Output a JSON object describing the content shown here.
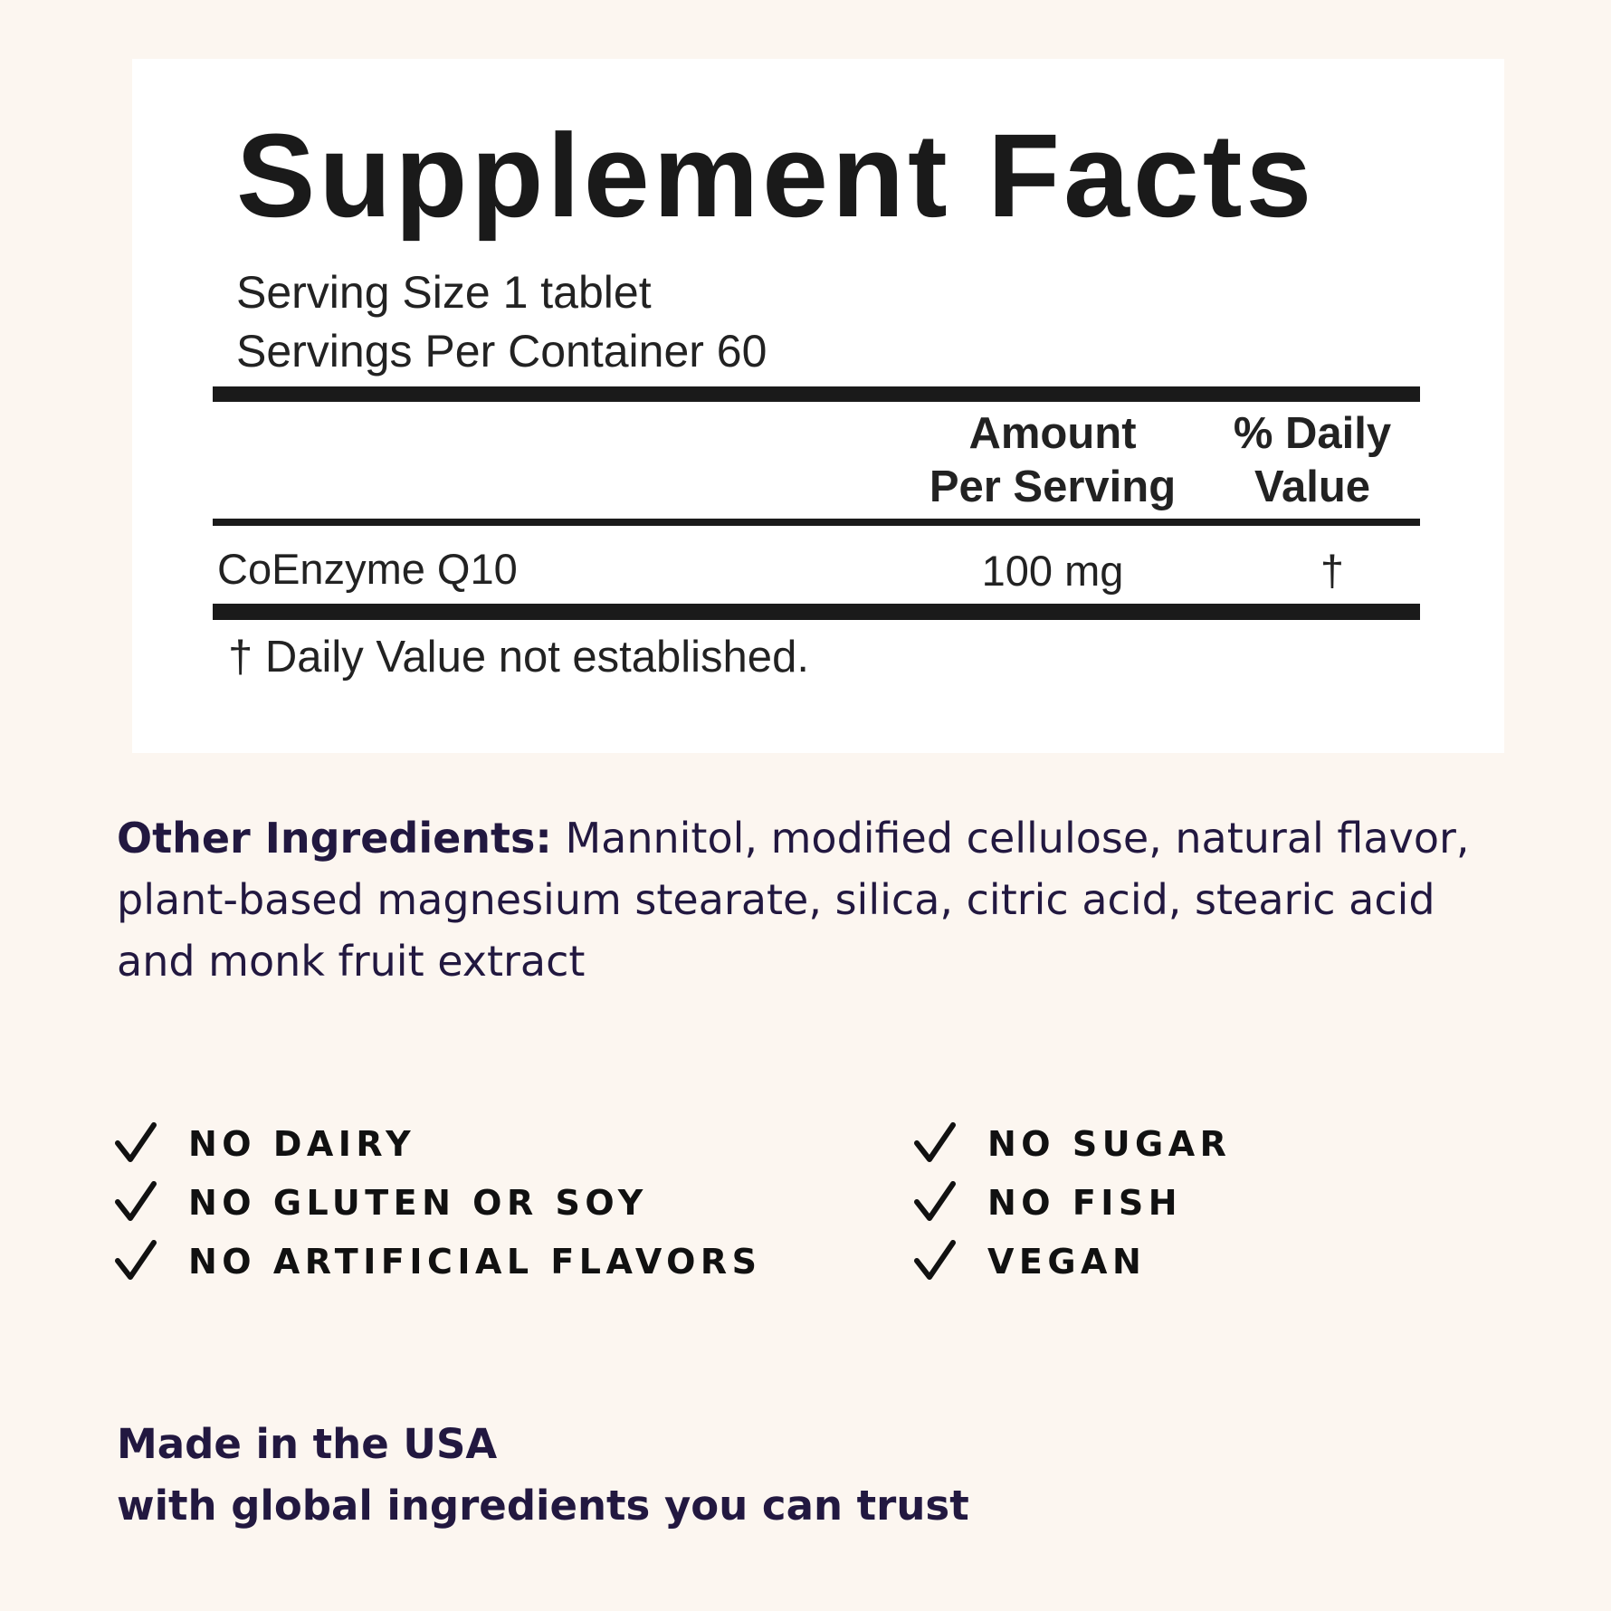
{
  "label": {
    "title": "Supplement Facts",
    "serving_size": "Serving Size 1 tablet",
    "servings_per_container": "Servings Per Container 60",
    "header": {
      "amount_line1": "Amount",
      "amount_line2": "Per Serving",
      "dv_line1": "% Daily",
      "dv_line2": "Value"
    },
    "rows": [
      {
        "name": "CoEnzyme Q10",
        "amount": "100 mg",
        "dv": "†"
      }
    ],
    "footnote": "† Daily Value not established."
  },
  "ingredients": {
    "heading": "Other Ingredients:",
    "lines": [
      "Mannitol, modified cellulose, natural flavor,",
      "plant-based magnesium stearate, silica, citric acid, stearic acid",
      "and monk fruit extract"
    ]
  },
  "claims": {
    "left": [
      "NO DAIRY",
      "NO GLUTEN OR SOY",
      "NO ARTIFICIAL FLAVORS"
    ],
    "right": [
      "NO SUGAR",
      "NO FISH",
      "VEGAN"
    ],
    "icon": "checkmark-icon"
  },
  "origin": {
    "line1": "Made in the USA",
    "line2": "with global ingredients you can trust"
  },
  "colors": {
    "background": "#fcf6f0",
    "text_dark_purple": "#221840",
    "label_black": "#1a1a1a"
  }
}
